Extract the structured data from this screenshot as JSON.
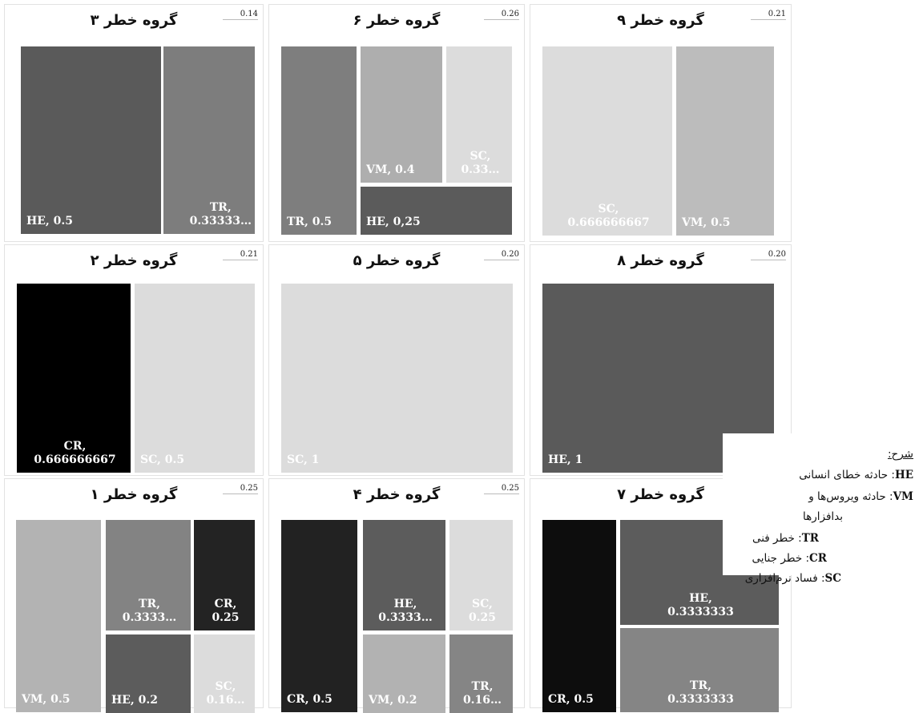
{
  "chart_data": [
    {
      "type": "treemap",
      "title": "گروه خطر ۳",
      "value": "0.14",
      "cells": [
        {
          "label": "HE, 0.5",
          "text": [
            "HE, 0.5"
          ],
          "color": "#5a5a5a"
        },
        {
          "label": "TR, 0.33333…",
          "text": [
            "TR,",
            "0.33333…"
          ],
          "color": "#7d7d7d"
        }
      ]
    },
    {
      "type": "treemap",
      "title": "گروه خطر ۶",
      "value": "0.26",
      "cells": [
        {
          "label": "TR, 0.5",
          "text": [
            "TR, 0.5"
          ],
          "color": "#7e7e7e"
        },
        {
          "label": "VM, 0.4",
          "text": [
            "VM, 0.4"
          ],
          "color": "#aeaeae"
        },
        {
          "label": "SC, 0.33…",
          "text": [
            "SC,",
            "0.33…"
          ],
          "color": "#dcdcdc"
        },
        {
          "label": "HE, 0,25",
          "text": [
            "HE, 0,25"
          ],
          "color": "#5b5b5b"
        }
      ]
    },
    {
      "type": "treemap",
      "title": "گروه خطر ۹",
      "value": "0.21",
      "cells": [
        {
          "label": "SC, 0.666666667",
          "text": [
            "SC,",
            "0.666666667"
          ],
          "color": "#dcdcdc"
        },
        {
          "label": "VM, 0.5",
          "text": [
            "VM, 0.5"
          ],
          "color": "#bcbcbc"
        }
      ]
    },
    {
      "type": "treemap",
      "title": "گروه خطر ۲",
      "value": "0.21",
      "cells": [
        {
          "label": "CR, 0.666666667",
          "text": [
            "CR,",
            "0.666666667"
          ],
          "color": "#000000"
        },
        {
          "label": "SC, 0.5",
          "text": [
            "SC, 0.5"
          ],
          "color": "#dcdcdc"
        }
      ]
    },
    {
      "type": "treemap",
      "title": "گروه خطر ۵",
      "value": "0.20",
      "cells": [
        {
          "label": "SC, 1",
          "text": [
            "SC, 1"
          ],
          "color": "#dcdcdc"
        }
      ]
    },
    {
      "type": "treemap",
      "title": "گروه خطر ۸",
      "value": "0.20",
      "cells": [
        {
          "label": "HE, 1",
          "text": [
            "HE, 1"
          ],
          "color": "#5a5a5a"
        }
      ]
    },
    {
      "type": "treemap",
      "title": "گروه خطر ۱",
      "value": "0.25",
      "cells": [
        {
          "label": "VM, 0.5",
          "text": [
            "VM, 0.5"
          ],
          "color": "#b3b3b3"
        },
        {
          "label": "TR, 0.3333…",
          "text": [
            "TR,",
            "0.3333…"
          ],
          "color": "#838383"
        },
        {
          "label": "CR, 0.25",
          "text": [
            "CR,",
            "0.25"
          ],
          "color": "#232323"
        },
        {
          "label": "HE, 0.2",
          "text": [
            "HE, 0.2"
          ],
          "color": "#5c5c5c"
        },
        {
          "label": "SC, 0.16…",
          "text": [
            "SC,",
            "0.16…"
          ],
          "color": "#dcdcdc"
        }
      ]
    },
    {
      "type": "treemap",
      "title": "گروه خطر ۴",
      "value": "0.25",
      "cells": [
        {
          "label": "CR, 0.5",
          "text": [
            "CR, 0.5"
          ],
          "color": "#222222"
        },
        {
          "label": "HE, 0.3333…",
          "text": [
            "HE,",
            "0.3333…"
          ],
          "color": "#5c5c5c"
        },
        {
          "label": "SC, 0.25",
          "text": [
            "SC,",
            "0.25"
          ],
          "color": "#dcdcdc"
        },
        {
          "label": "VM, 0.2",
          "text": [
            "VM, 0.2"
          ],
          "color": "#b2b2b2"
        },
        {
          "label": "TR, 0.16…",
          "text": [
            "TR,",
            "0.16…"
          ],
          "color": "#858585"
        }
      ]
    },
    {
      "type": "treemap",
      "title": "گروه خطر ۷",
      "value": "",
      "cells": [
        {
          "label": "CR, 0.5",
          "text": [
            "CR, 0.5"
          ],
          "color": "#0d0d0d"
        },
        {
          "label": "HE, 0.3333333",
          "text": [
            "HE,",
            "0.3333333"
          ],
          "color": "#5c5c5c"
        },
        {
          "label": "TR, 0.3333333",
          "text": [
            "TR,",
            "0.3333333"
          ],
          "color": "#858585"
        }
      ]
    }
  ],
  "legend": {
    "title": "شرح:",
    "items": [
      {
        "code": "HE",
        "sep": ": ",
        "text": "حادثه خطای انسانی"
      },
      {
        "code": "VM",
        "sep": ": ",
        "text": "حادثه ویروس‌ها و"
      },
      {
        "code": "",
        "sep": "",
        "text": "بدافزارها"
      },
      {
        "code": "TR",
        "sep": ": ",
        "text": "خطر فنی"
      },
      {
        "code": "CR",
        "sep": ": ",
        "text": "خطر جنایی"
      },
      {
        "code": "SC",
        "sep": ": ",
        "text": "فساد نرم‌افزاری"
      }
    ]
  }
}
